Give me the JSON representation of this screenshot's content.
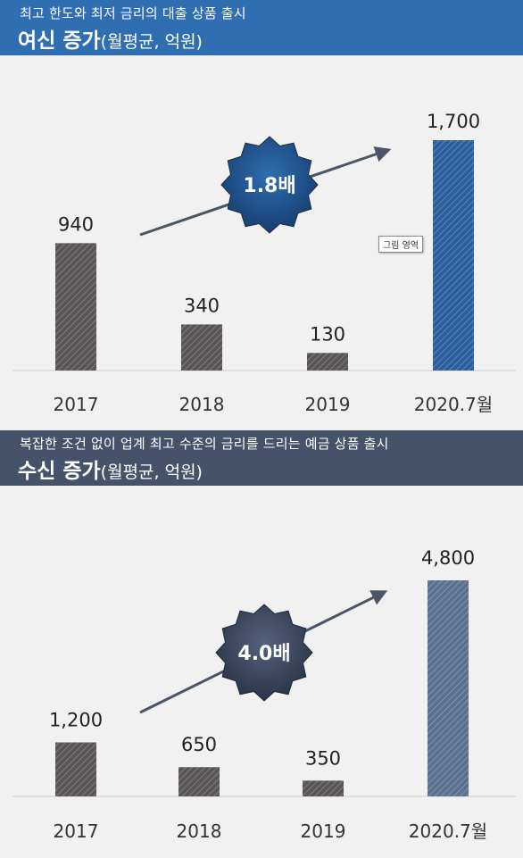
{
  "loan_panel": {
    "subtitle": "최고 한도와 최저 금리의 대출 상품 출시",
    "title": "여신 증가",
    "title_unit": "(월평균, 억원)",
    "growth_badge": "1.8배",
    "tooltip": "그림 영역"
  },
  "deposit_panel": {
    "subtitle": "복잡한 조건 없이 업계 최고 수준의 금리를 드리는 예금 상품 출시",
    "title": "수신 증가",
    "title_unit": "(월평균, 억원)",
    "growth_badge": "4.0배"
  },
  "colors": {
    "loan_banner": "#2f6eb0",
    "deposit_banner": "#45536a",
    "bar_gray": "#5a5557",
    "bar_loan_highlight": "#2c5f9e",
    "bar_deposit_highlight": "#5b7190"
  },
  "chart_data": [
    {
      "type": "bar",
      "categories": [
        "2017",
        "2018",
        "2019",
        "2020.7월"
      ],
      "values": [
        940,
        340,
        130,
        1700
      ],
      "value_labels": [
        "940",
        "340",
        "130",
        "1,700"
      ],
      "title": "여신 증가(월평균, 억원)",
      "ylim": [
        0,
        1700
      ],
      "grid": false,
      "highlight_index": 3
    },
    {
      "type": "bar",
      "categories": [
        "2017",
        "2018",
        "2019",
        "2020.7월"
      ],
      "values": [
        1200,
        650,
        350,
        4800
      ],
      "value_labels": [
        "1,200",
        "650",
        "350",
        "4,800"
      ],
      "title": "수신 증가(월평균, 억원)",
      "ylim": [
        0,
        4800
      ],
      "grid": false,
      "highlight_index": 3
    }
  ]
}
